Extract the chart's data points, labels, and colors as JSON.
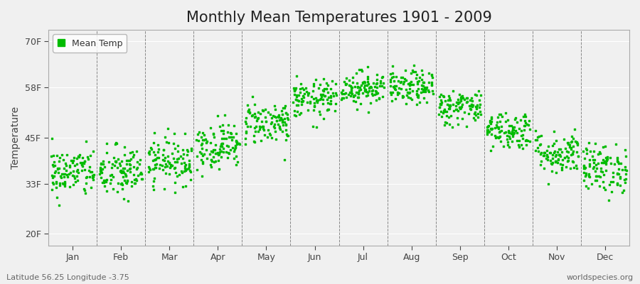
{
  "title": "Monthly Mean Temperatures 1901 - 2009",
  "ylabel": "Temperature",
  "xlabel_labels": [
    "Jan",
    "Feb",
    "Mar",
    "Apr",
    "May",
    "Jun",
    "Jul",
    "Aug",
    "Sep",
    "Oct",
    "Nov",
    "Dec"
  ],
  "ytick_labels": [
    "20F",
    "33F",
    "45F",
    "58F",
    "70F"
  ],
  "ytick_values": [
    20,
    33,
    45,
    58,
    70
  ],
  "ylim": [
    17,
    73
  ],
  "legend_label": "Mean Temp",
  "dot_color": "#00bb00",
  "dot_size": 2.5,
  "background_color": "#f0f0f0",
  "plot_bg_color": "#f0f0f0",
  "title_fontsize": 15,
  "axis_fontsize": 10,
  "tick_fontsize": 9,
  "bottom_left_text": "Latitude 56.25 Longitude -3.75",
  "bottom_right_text": "worldspecies.org",
  "monthly_means_F": [
    36,
    36,
    39,
    43,
    49,
    55,
    58,
    58,
    53,
    47,
    41,
    37
  ],
  "monthly_stds_F": [
    3.2,
    3.5,
    3.0,
    3.0,
    2.8,
    2.5,
    2.2,
    2.2,
    2.3,
    2.5,
    2.8,
    3.2
  ],
  "n_years": 109,
  "seed": 42
}
